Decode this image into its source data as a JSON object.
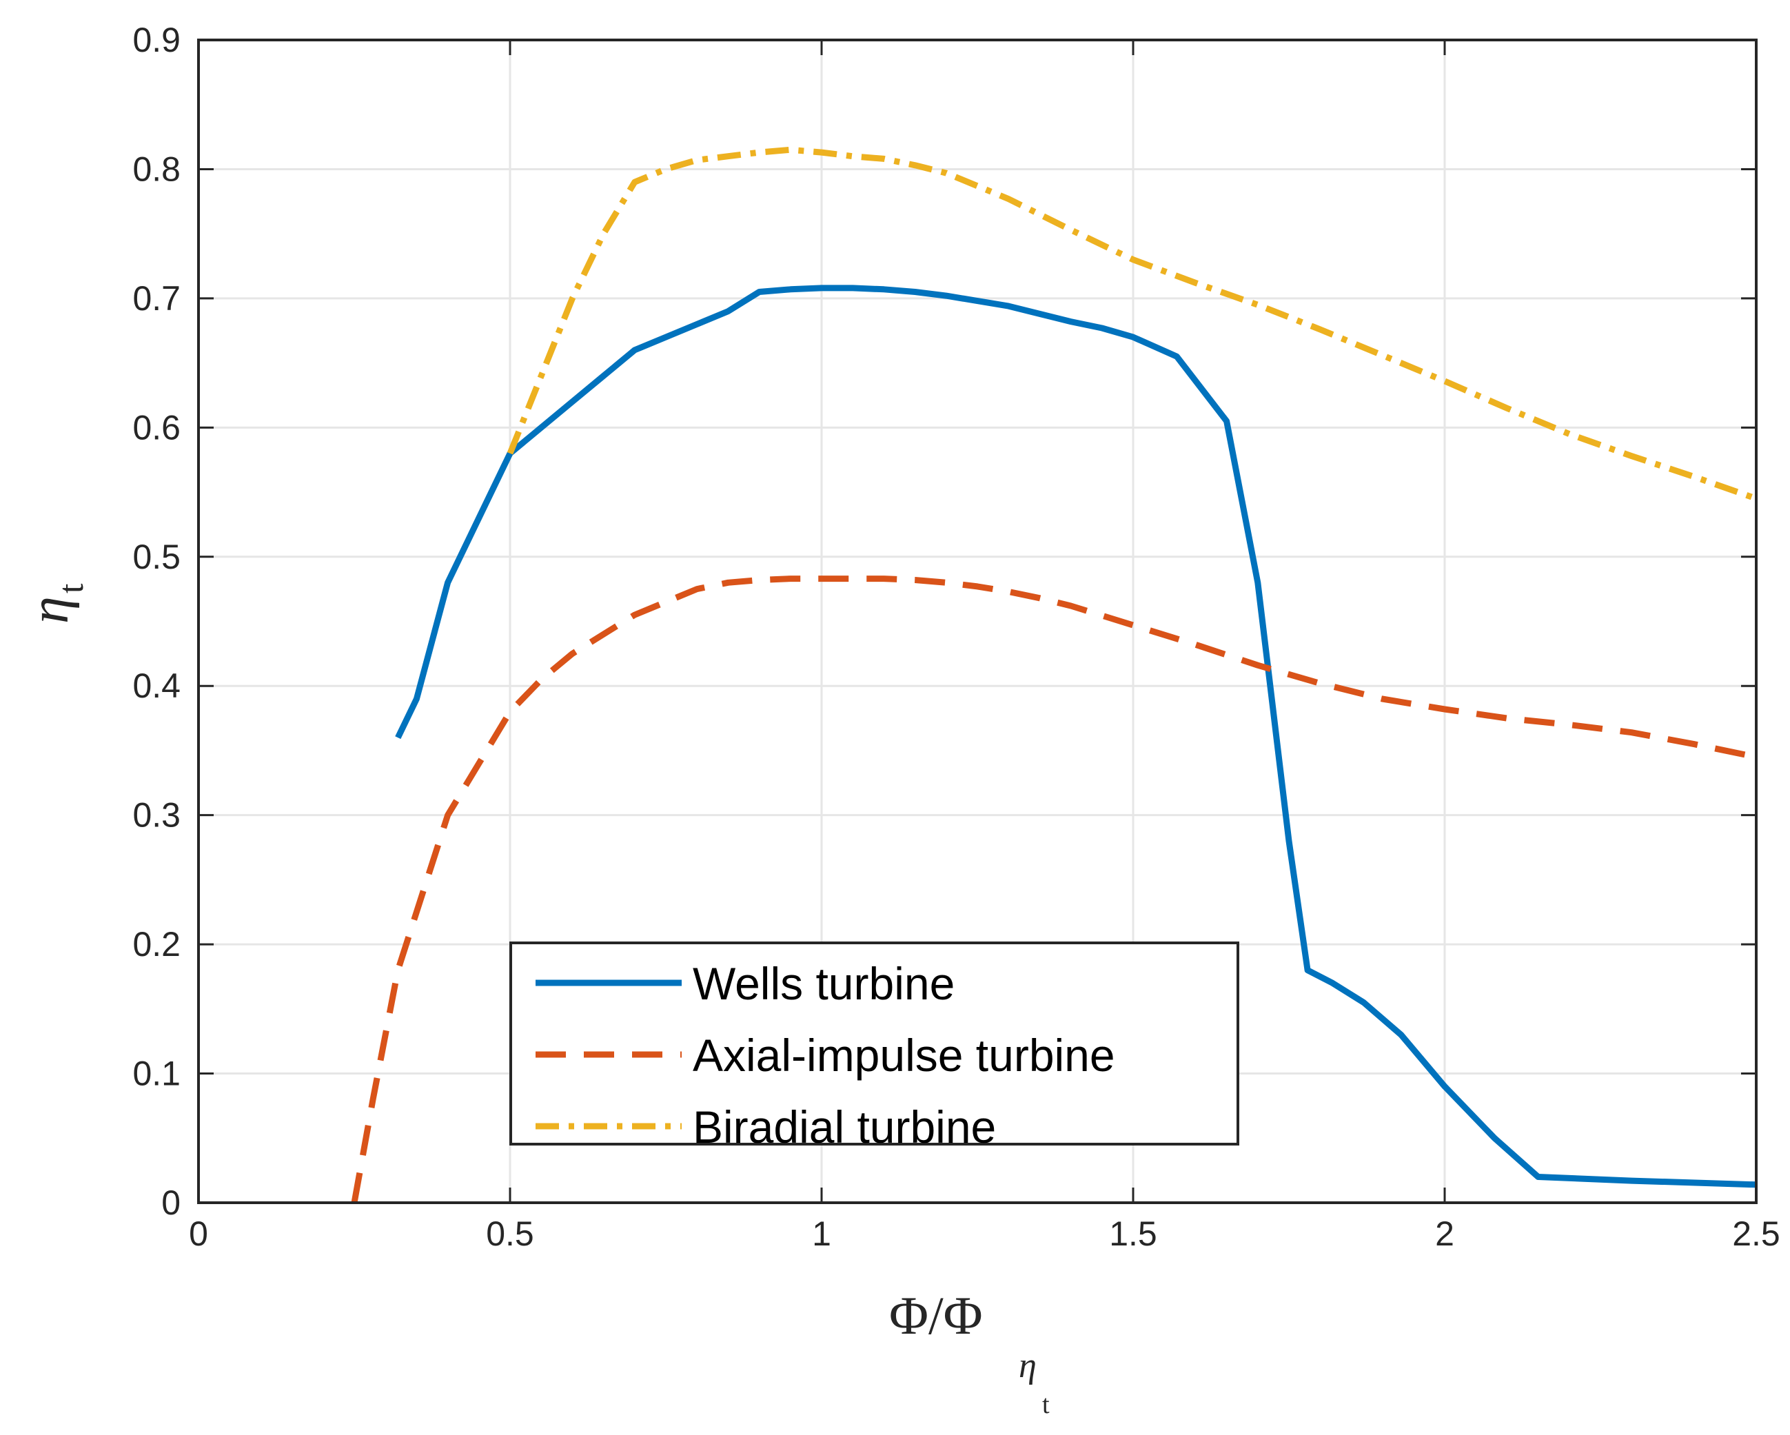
{
  "chart_data": {
    "type": "line",
    "title": "",
    "xlabel": "Φ/Φ",
    "xlabel_subscript": "η",
    "xlabel_subsubscript": "t",
    "ylabel": "η",
    "ylabel_subscript": "t",
    "xlim": [
      0,
      2.5
    ],
    "ylim": [
      0,
      0.9
    ],
    "xticks": [
      "0",
      "0.5",
      "1",
      "1.5",
      "2",
      "2.5"
    ],
    "yticks": [
      "0",
      "0.1",
      "0.2",
      "0.3",
      "0.4",
      "0.5",
      "0.6",
      "0.7",
      "0.8",
      "0.9"
    ],
    "grid": true,
    "legend_position": "bottom-center",
    "series": [
      {
        "name": "Wells turbine",
        "style": "solid",
        "color": "#0072BD",
        "x": [
          0.32,
          0.35,
          0.4,
          0.45,
          0.5,
          0.55,
          0.6,
          0.65,
          0.7,
          0.75,
          0.8,
          0.85,
          0.9,
          0.95,
          1.0,
          1.05,
          1.1,
          1.15,
          1.2,
          1.25,
          1.3,
          1.35,
          1.4,
          1.45,
          1.5,
          1.57,
          1.65,
          1.7,
          1.72,
          1.75,
          1.78,
          1.82,
          1.87,
          1.93,
          2.0,
          2.08,
          2.15,
          2.3,
          2.5
        ],
        "y": [
          0.36,
          0.39,
          0.48,
          0.53,
          0.58,
          0.6,
          0.62,
          0.64,
          0.66,
          0.67,
          0.68,
          0.69,
          0.705,
          0.707,
          0.708,
          0.708,
          0.707,
          0.705,
          0.702,
          0.698,
          0.694,
          0.688,
          0.682,
          0.677,
          0.67,
          0.655,
          0.605,
          0.48,
          0.4,
          0.28,
          0.18,
          0.17,
          0.155,
          0.13,
          0.09,
          0.05,
          0.02,
          0.017,
          0.014
        ]
      },
      {
        "name": "Axial-impulse turbine",
        "style": "dashed",
        "color": "#D95319",
        "x": [
          0.25,
          0.28,
          0.32,
          0.36,
          0.4,
          0.45,
          0.5,
          0.55,
          0.6,
          0.65,
          0.7,
          0.75,
          0.8,
          0.85,
          0.9,
          0.95,
          1.0,
          1.05,
          1.1,
          1.15,
          1.2,
          1.25,
          1.3,
          1.35,
          1.4,
          1.5,
          1.6,
          1.7,
          1.8,
          1.9,
          2.0,
          2.1,
          2.2,
          2.3,
          2.4,
          2.5
        ],
        "y": [
          0.0,
          0.08,
          0.18,
          0.24,
          0.3,
          0.34,
          0.38,
          0.405,
          0.425,
          0.44,
          0.455,
          0.465,
          0.475,
          0.48,
          0.482,
          0.483,
          0.483,
          0.483,
          0.483,
          0.482,
          0.48,
          0.477,
          0.473,
          0.468,
          0.462,
          0.447,
          0.432,
          0.416,
          0.402,
          0.39,
          0.382,
          0.375,
          0.37,
          0.364,
          0.355,
          0.345
        ]
      },
      {
        "name": "Biradial turbine",
        "style": "dashdot",
        "color": "#EDB120",
        "x": [
          0.5,
          0.55,
          0.6,
          0.65,
          0.7,
          0.75,
          0.8,
          0.85,
          0.9,
          0.95,
          1.0,
          1.05,
          1.1,
          1.15,
          1.2,
          1.3,
          1.4,
          1.5,
          1.6,
          1.7,
          1.8,
          1.9,
          2.0,
          2.1,
          2.2,
          2.3,
          2.4,
          2.5
        ],
        "y": [
          0.58,
          0.64,
          0.7,
          0.75,
          0.79,
          0.8,
          0.807,
          0.81,
          0.813,
          0.815,
          0.813,
          0.81,
          0.808,
          0.803,
          0.797,
          0.777,
          0.753,
          0.73,
          0.712,
          0.695,
          0.676,
          0.656,
          0.636,
          0.615,
          0.595,
          0.578,
          0.562,
          0.545
        ]
      }
    ]
  }
}
